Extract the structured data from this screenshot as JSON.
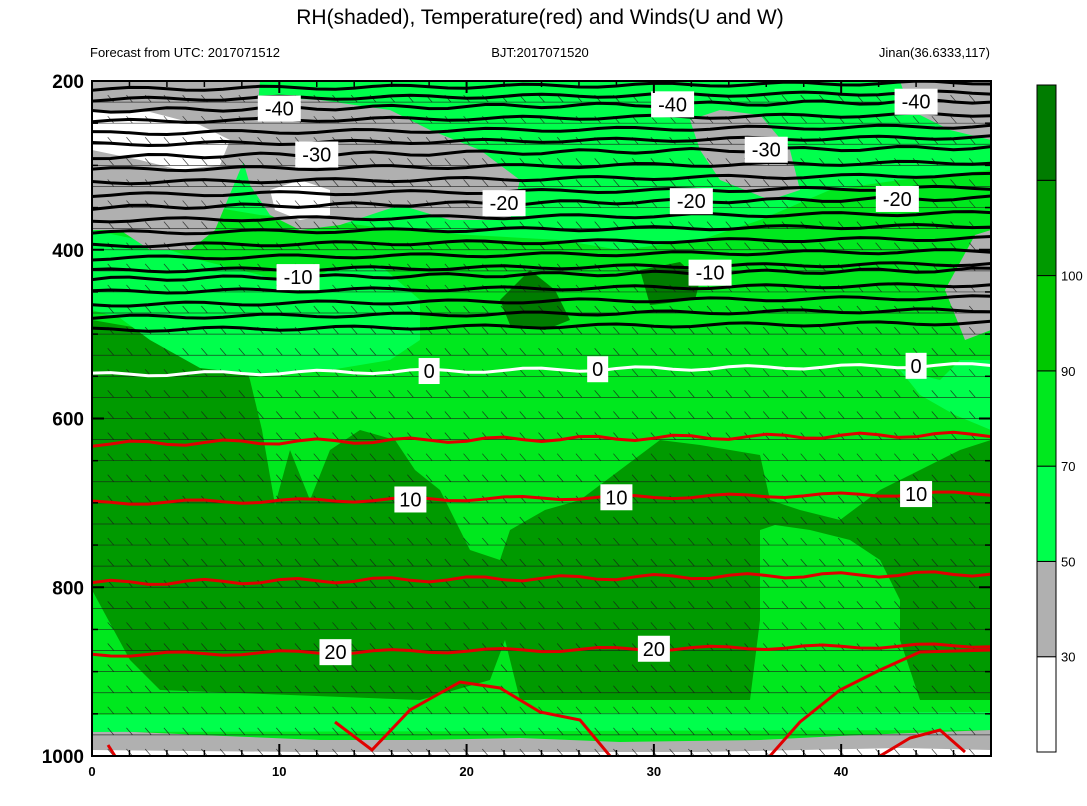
{
  "chart_data": {
    "type": "heatmap",
    "title": "RH(shaded), Temperature(red) and Winds(U and W)",
    "subtitle_left": "Forecast from UTC: 2017071512",
    "subtitle_center": "BJT:2017071520",
    "subtitle_right": "Jinan(36.6333,117)",
    "x_range": [
      0,
      48
    ],
    "x_ticks": [
      "0",
      "10",
      "20",
      "30",
      "40"
    ],
    "y_range": [
      200,
      1000
    ],
    "y_ticks": [
      "200",
      "400",
      "600",
      "800",
      "1000"
    ],
    "rh_levels": [
      "30",
      "50",
      "70",
      "90",
      "100"
    ],
    "rh_colors": [
      "#ffffff",
      "#b0b0b0",
      "#00ff4c",
      "#00e81e",
      "#00c800",
      "#009a00",
      "#007c00"
    ],
    "temperature_isotherms": [
      {
        "label": "-40",
        "level": 235,
        "color": "#000000"
      },
      {
        "label": "-30",
        "level": 290,
        "color": "#000000"
      },
      {
        "label": "-20",
        "level": 350,
        "color": "#000000"
      },
      {
        "label": "-10",
        "level": 435,
        "color": "#000000"
      },
      {
        "label": "0",
        "level": 548,
        "color": "#ffffff"
      },
      {
        "label": "10",
        "level": 700,
        "color": "#e00000"
      },
      {
        "label": "20",
        "level": 880,
        "color": "#e00000"
      }
    ]
  }
}
